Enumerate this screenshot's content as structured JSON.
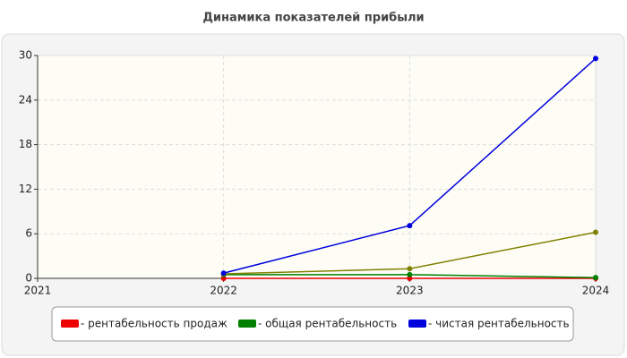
{
  "chart_data": {
    "type": "line",
    "title": "Динамика показателей прибыли",
    "x": [
      2021,
      2022,
      2023,
      2024
    ],
    "xlim": [
      2021,
      2024
    ],
    "xticks": [
      2021,
      2022,
      2023,
      2024
    ],
    "ylim": [
      0,
      30
    ],
    "yticks": [
      0,
      6,
      12,
      18,
      24,
      30
    ],
    "grid": true,
    "legend": "bottom",
    "series": [
      {
        "name": "- рентабельность продаж",
        "color": "#ee0000",
        "values": [
          null,
          0,
          0,
          0
        ]
      },
      {
        "name": "- общая рентабельность",
        "color": "#008000",
        "values": [
          null,
          0.5,
          0.5,
          0.1
        ]
      },
      {
        "color": "#808000",
        "values": [
          null,
          0.6,
          1.3,
          6.2
        ]
      },
      {
        "name": "- чистая рентабельность",
        "color": "#0000dd",
        "values": [
          null,
          0.7,
          7.1,
          29.6
        ]
      }
    ]
  }
}
